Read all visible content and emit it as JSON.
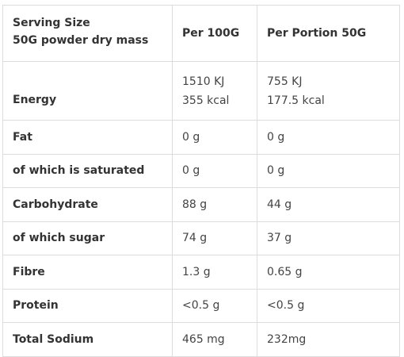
{
  "header": {
    "col1_line1": "Serving Size",
    "col1_line2": "50G  powder dry mass",
    "col2": "Per 100G",
    "col3": "Per Portion 50G"
  },
  "rows": [
    {
      "label": "Energy",
      "per100_line1": "1510 KJ",
      "per100_line2": "355 kcal",
      "portion_line1": "755 KJ",
      "portion_line2": "177.5 kcal"
    },
    {
      "label": "Fat",
      "per100": "0 g",
      "portion": "0 g"
    },
    {
      "label": "of which is saturated",
      "per100": "0 g",
      "portion": "0 g"
    },
    {
      "label": "Carbohydrate",
      "per100": "88 g",
      "portion": "44 g"
    },
    {
      "label": "of which sugar",
      "per100": "74 g",
      "portion": "37 g"
    },
    {
      "label": "Fibre",
      "per100": "1.3 g",
      "portion": "0.65 g"
    },
    {
      "label": "Protein",
      "per100": "<0.5 g",
      "portion": "<0.5 g"
    },
    {
      "label": "Total Sodium",
      "per100": "465 mg",
      "portion": "232mg"
    }
  ]
}
